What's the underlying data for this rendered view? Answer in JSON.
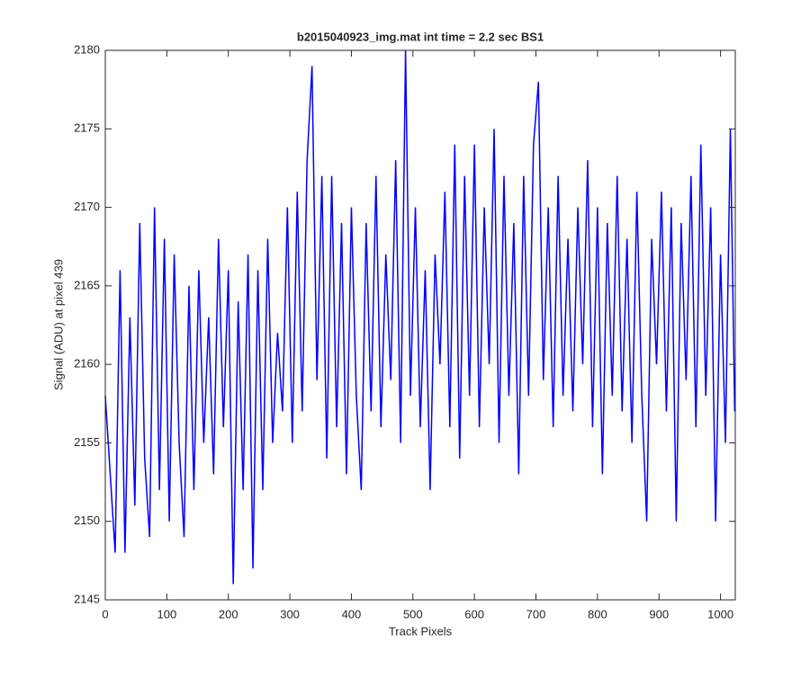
{
  "chart_data": {
    "type": "line",
    "title": "b2015040923_img.mat int time = 2.2 sec   BS1",
    "xlabel": "Track Pixels",
    "ylabel": "Signal (ADU) at pixel 439",
    "x": [
      0,
      8,
      16,
      24,
      32,
      40,
      48,
      56,
      64,
      72,
      80,
      88,
      96,
      104,
      112,
      120,
      128,
      136,
      144,
      152,
      160,
      168,
      176,
      184,
      192,
      200,
      208,
      216,
      224,
      232,
      240,
      248,
      256,
      264,
      272,
      280,
      288,
      296,
      304,
      312,
      320,
      328,
      336,
      344,
      352,
      360,
      368,
      376,
      384,
      392,
      400,
      408,
      416,
      424,
      432,
      440,
      448,
      456,
      464,
      472,
      480,
      488,
      496,
      504,
      512,
      520,
      528,
      536,
      544,
      552,
      560,
      568,
      576,
      584,
      592,
      600,
      608,
      616,
      624,
      632,
      640,
      648,
      656,
      664,
      672,
      680,
      688,
      696,
      704,
      712,
      720,
      728,
      736,
      744,
      752,
      760,
      768,
      776,
      784,
      792,
      800,
      808,
      816,
      824,
      832,
      840,
      848,
      856,
      864,
      872,
      880,
      888,
      896,
      904,
      912,
      920,
      928,
      936,
      944,
      952,
      960,
      968,
      976,
      984,
      992,
      1000,
      1008,
      1016,
      1023
    ],
    "series": [
      {
        "color": "#0000ff",
        "values": [
          2158,
          2153,
          2148,
          2166,
          2148,
          2163,
          2151,
          2169,
          2154,
          2149,
          2170,
          2152,
          2168,
          2150,
          2167,
          2155,
          2149,
          2165,
          2152,
          2166,
          2155,
          2163,
          2153,
          2168,
          2156,
          2166,
          2146,
          2164,
          2152,
          2167,
          2147,
          2166,
          2152,
          2168,
          2155,
          2162,
          2157,
          2170,
          2155,
          2171,
          2157,
          2173,
          2179,
          2159,
          2172,
          2154,
          2172,
          2156,
          2169,
          2153,
          2170,
          2158,
          2152,
          2169,
          2157,
          2172,
          2156,
          2167,
          2159,
          2173,
          2155,
          2180,
          2158,
          2170,
          2156,
          2166,
          2152,
          2167,
          2160,
          2171,
          2156,
          2174,
          2154,
          2172,
          2158,
          2174,
          2156,
          2170,
          2160,
          2175,
          2155,
          2172,
          2158,
          2169,
          2153,
          2172,
          2158,
          2174,
          2178,
          2159,
          2170,
          2156,
          2172,
          2158,
          2168,
          2157,
          2170,
          2160,
          2173,
          2156,
          2170,
          2153,
          2169,
          2158,
          2172,
          2157,
          2168,
          2155,
          2171,
          2158,
          2150,
          2168,
          2160,
          2171,
          2157,
          2170,
          2150,
          2169,
          2159,
          2172,
          2156,
          2174,
          2158,
          2170,
          2150,
          2167,
          2155,
          2175,
          2157
        ]
      }
    ],
    "xlim": [
      0,
      1024
    ],
    "ylim": [
      2145,
      2180
    ],
    "xticks": [
      0,
      100,
      200,
      300,
      400,
      500,
      600,
      700,
      800,
      900,
      1000
    ],
    "yticks": [
      2145,
      2150,
      2155,
      2160,
      2165,
      2170,
      2175,
      2180
    ]
  }
}
